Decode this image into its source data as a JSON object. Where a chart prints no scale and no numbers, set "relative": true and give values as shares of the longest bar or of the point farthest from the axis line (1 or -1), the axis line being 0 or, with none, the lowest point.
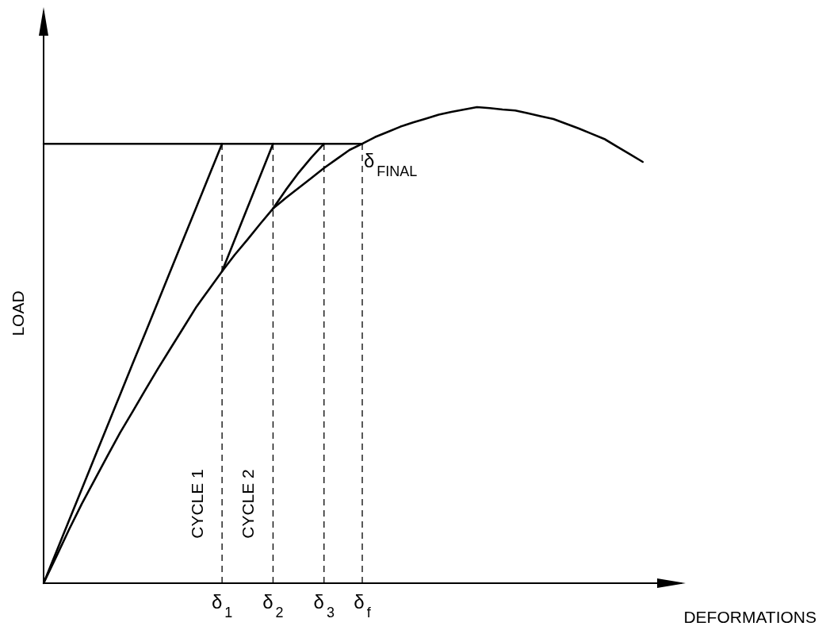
{
  "chart_data": {
    "type": "line",
    "xlabel": "DEFORMATIONS",
    "ylabel": "LOAD",
    "relative": true,
    "tick_labels": "x",
    "grid": false,
    "marker": "none",
    "line_style": "solid",
    "categories": [
      null,
      null,
      null,
      null,
      null,
      null,
      null,
      null,
      null,
      null,
      null,
      null,
      null,
      null,
      "δ$_{1}$",
      null,
      null,
      null,
      "δ$_{2}$",
      null,
      null,
      null,
      "δ$_{3}$",
      null,
      null,
      "δ$_{f}$",
      null,
      null,
      null,
      null,
      null,
      null,
      null,
      null,
      null,
      null,
      null,
      null,
      null,
      null,
      null,
      null,
      null,
      null,
      null,
      null,
      null,
      null,
      null,
      null,
      null
    ],
    "series": [
      {
        "color": "#000000",
        "values": [
          0,
          0.056,
          0.113,
          0.167,
          0.217,
          0.267,
          0.316,
          0.361,
          0.407,
          0.452,
          0.495,
          0.538,
          0.581,
          0.618,
          0.655,
          0.69,
          0.722,
          0.755,
          0.787,
          0.809,
          0.83,
          0.851,
          0.872,
          0.891,
          0.91,
          0.923,
          0.937,
          0.948,
          0.959,
          0.968,
          0.976,
          0.984,
          0.99,
          0.995,
          1,
          0.998,
          0.995,
          0.993,
          0.987,
          0.981,
          0.975,
          0.965,
          0.955,
          0.944,
          0.933,
          0.917,
          0.901,
          0.885,
          null,
          null,
          null
        ]
      },
      {
        "color": "#000000",
        "values": [
          0,
          0.066,
          0.132,
          0.198,
          0.264,
          0.33,
          0.396,
          0.462,
          0.527,
          0.593,
          0.659,
          0.725,
          0.791,
          0.857,
          0.923,
          null,
          null,
          null,
          null,
          null,
          null,
          null,
          null,
          null,
          null,
          null,
          null,
          null,
          null,
          null,
          null,
          null,
          null,
          null,
          null,
          null,
          null,
          null,
          null,
          null,
          null,
          null,
          null,
          null,
          null,
          null,
          null,
          null,
          null,
          null,
          null
        ]
      },
      {
        "color": "#000000",
        "values": [
          null,
          null,
          null,
          null,
          null,
          null,
          null,
          null,
          null,
          null,
          null,
          null,
          null,
          null,
          0.655,
          0.722,
          0.789,
          0.856,
          0.923,
          null,
          null,
          null,
          null,
          null,
          null,
          null,
          null,
          null,
          null,
          null,
          null,
          null,
          null,
          null,
          null,
          null,
          null,
          null,
          null,
          null,
          null,
          null,
          null,
          null,
          null,
          null,
          null,
          null,
          null,
          null,
          null
        ]
      },
      {
        "color": "#000000",
        "values": [
          null,
          null,
          null,
          null,
          null,
          null,
          null,
          null,
          null,
          null,
          null,
          null,
          null,
          null,
          null,
          null,
          null,
          null,
          0.787,
          0.826,
          0.862,
          0.894,
          0.923,
          null,
          null,
          null,
          null,
          null,
          null,
          null,
          null,
          null,
          null,
          null,
          null,
          null,
          null,
          null,
          null,
          null,
          null,
          null,
          null,
          null,
          null,
          null,
          null,
          null,
          null,
          null,
          null
        ]
      },
      {
        "color": "#000000",
        "values": [
          0.923,
          0.923,
          0.923,
          0.923,
          0.923,
          0.923,
          0.923,
          0.923,
          0.923,
          0.923,
          0.923,
          0.923,
          0.923,
          0.923,
          0.923,
          0.923,
          0.923,
          0.923,
          0.923,
          0.923,
          0.923,
          0.923,
          0.923,
          0.923,
          0.923,
          0.923,
          null,
          null,
          null,
          null,
          null,
          null,
          null,
          null,
          null,
          null,
          null,
          null,
          null,
          null,
          null,
          null,
          null,
          null,
          null,
          null,
          null,
          null,
          null,
          null,
          null
        ]
      }
    ],
    "ref_lines": [
      {
        "axis": "x",
        "value": "δ$_{1}$",
        "line_style": "dashed"
      },
      {
        "axis": "x",
        "value": "δ$_{2}$",
        "line_style": "dashed"
      },
      {
        "axis": "x",
        "value": "δ$_{3}$",
        "line_style": "dashed"
      },
      {
        "axis": "x",
        "value": "δ$_{f}$",
        "line_style": "dashed"
      }
    ],
    "annotations": [
      "CYCLE 1",
      "CYCLE 2",
      {
        "text": "δ$_{FINAL}$",
        "x": "δ$_{f}$",
        "y": 0.923
      }
    ]
  }
}
